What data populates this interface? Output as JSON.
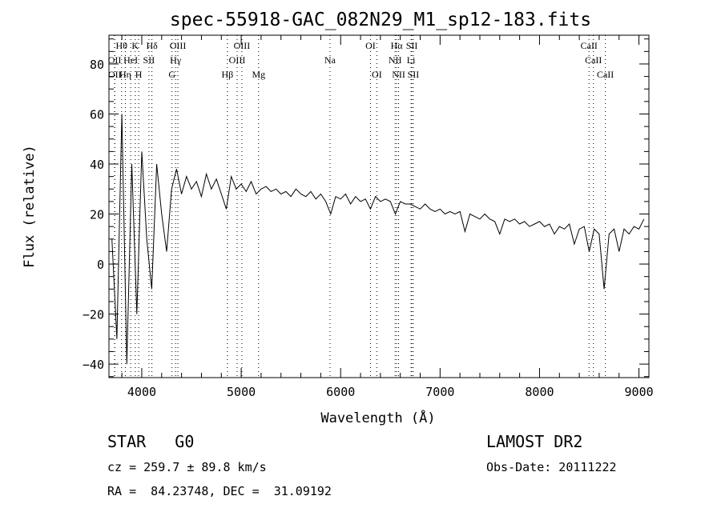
{
  "chart_data": {
    "type": "line",
    "title": "spec-55918-GAC_082N29_M1_sp12-183.fits",
    "xlabel": "Wavelength (Å)",
    "ylabel": "Flux (relative)",
    "xlim": [
      3670,
      9100
    ],
    "ylim": [
      -45.4,
      91.5
    ],
    "xticks": [
      4000,
      5000,
      6000,
      7000,
      8000,
      9000
    ],
    "yticks": [
      -40,
      -20,
      0,
      20,
      40,
      60,
      80
    ],
    "grid": false,
    "series": [
      {
        "name": "spectrum",
        "x_start": 3700,
        "x_step": 50,
        "values": [
          10,
          -30,
          60,
          -40,
          40,
          -20,
          45,
          10,
          -10,
          40,
          20,
          5,
          30,
          38,
          28,
          35,
          30,
          33,
          27,
          36,
          30,
          34,
          28,
          22,
          35,
          30,
          32,
          29,
          33,
          28,
          30,
          31,
          29,
          30,
          28,
          29,
          27,
          30,
          28,
          27,
          29,
          26,
          28,
          25,
          20,
          27,
          26,
          28,
          24,
          27,
          25,
          26,
          22,
          27,
          25,
          26,
          25,
          20,
          25,
          24,
          24,
          23,
          22,
          24,
          22,
          21,
          22,
          20,
          21,
          20,
          21,
          13,
          20,
          19,
          18,
          20,
          18,
          17,
          12,
          18,
          17,
          18,
          16,
          17,
          15,
          16,
          17,
          15,
          16,
          12,
          15,
          14,
          16,
          8,
          14,
          15,
          5,
          14,
          12,
          -10,
          12,
          14,
          5,
          14,
          12,
          15,
          14,
          18
        ]
      }
    ],
    "lines": [
      {
        "label": "Hθ",
        "wave": 3797,
        "row": 0
      },
      {
        "label": "K",
        "wave": 3934,
        "row": 0
      },
      {
        "label": "Hδ",
        "wave": 4102,
        "row": 0
      },
      {
        "label": "OIII",
        "wave": 4363,
        "row": 0
      },
      {
        "label": "OIII",
        "wave": 5007,
        "row": 0
      },
      {
        "label": "OI",
        "wave": 6300,
        "row": 0
      },
      {
        "label": "Hα",
        "wave": 6563,
        "row": 0
      },
      {
        "label": "SII",
        "wave": 6716,
        "row": 0
      },
      {
        "label": "CaII",
        "wave": 8498,
        "row": 0
      },
      {
        "label": "OII",
        "wave": 3727,
        "row": 1
      },
      {
        "label": "HeI",
        "wave": 3889,
        "row": 1
      },
      {
        "label": "SII",
        "wave": 4072,
        "row": 1
      },
      {
        "label": "Hγ",
        "wave": 4340,
        "row": 1
      },
      {
        "label": "OIII",
        "wave": 4959,
        "row": 1
      },
      {
        "label": "Na",
        "wave": 5893,
        "row": 1
      },
      {
        "label": "NII",
        "wave": 6548,
        "row": 1
      },
      {
        "label": "Li",
        "wave": 6708,
        "row": 1
      },
      {
        "label": "CaII",
        "wave": 8542,
        "row": 1
      },
      {
        "label": "OII",
        "wave": 3729,
        "row": 2
      },
      {
        "label": "Hη",
        "wave": 3835,
        "row": 2
      },
      {
        "label": "H",
        "wave": 3969,
        "row": 2
      },
      {
        "label": "G",
        "wave": 4304,
        "row": 2
      },
      {
        "label": "Hβ",
        "wave": 4861,
        "row": 2
      },
      {
        "label": "Mg",
        "wave": 5175,
        "row": 2
      },
      {
        "label": "OI",
        "wave": 6364,
        "row": 2
      },
      {
        "label": "NII",
        "wave": 6583,
        "row": 2
      },
      {
        "label": "SII",
        "wave": 6731,
        "row": 2
      },
      {
        "label": "CaII",
        "wave": 8662,
        "row": 2
      }
    ]
  },
  "info": {
    "class": "STAR   G0",
    "survey": "LAMOST DR2",
    "cz": "cz = 259.7 ± 89.8 km/s",
    "obs_date": "Obs-Date: 20111222",
    "coords": "RA =  84.23748, DEC =  31.09192"
  }
}
